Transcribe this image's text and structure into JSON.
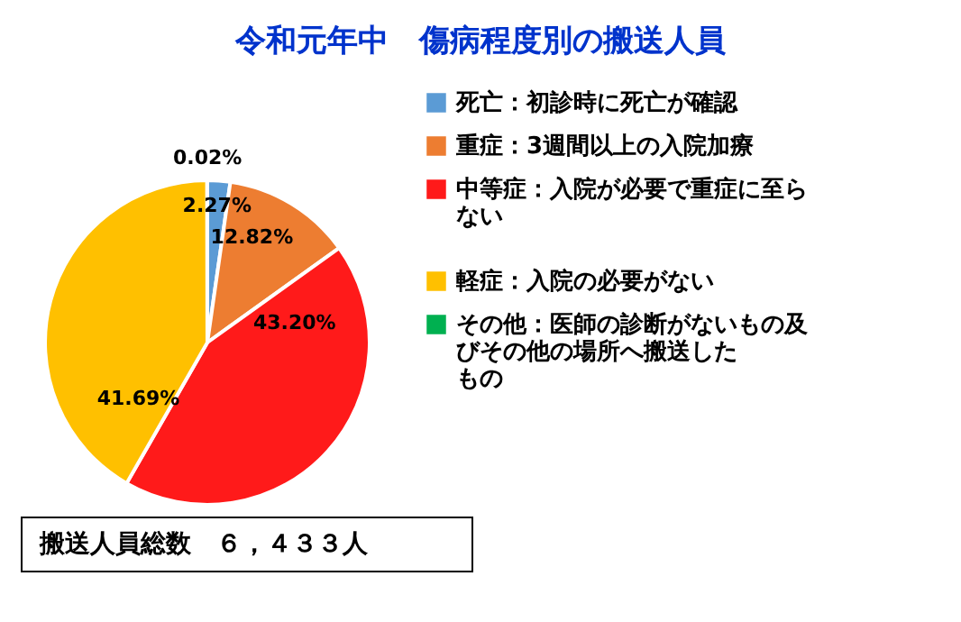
{
  "chart_data": {
    "type": "pie",
    "title": "令和元年中　傷病程度別の搬送人員",
    "categories": [
      "死亡：初診時に死亡が確認",
      "重症：3週間以上の入院加療",
      "中等症：入院が必要で重症に至らない",
      "軽症：入院の必要がない",
      "その他：医師の診断がないもの及びその他の場所へ搬送したもの"
    ],
    "values": [
      2.27,
      12.82,
      43.2,
      41.69,
      0.02
    ],
    "colors": [
      "#5b9bd5",
      "#ed7d31",
      "#ff1a1a",
      "#ffc000",
      "#00b050"
    ],
    "value_labels": [
      "2.27%",
      "12.82%",
      "43.20%",
      "41.69%",
      "0.02%"
    ],
    "legend": "right",
    "annotations": [
      "搬送人員総数　６，４３３人"
    ]
  }
}
